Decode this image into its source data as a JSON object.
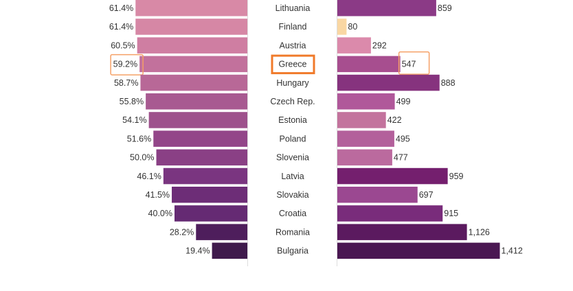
{
  "chart_data": {
    "type": "bar",
    "categories": [
      "Lithuania",
      "Finland",
      "Austria",
      "Greece",
      "Hungary",
      "Czech Rep.",
      "Estonia",
      "Poland",
      "Slovenia",
      "Latvia",
      "Slovakia",
      "Croatia",
      "Romania",
      "Bulgaria"
    ],
    "series": [
      {
        "values": [
          61.4,
          61.4,
          60.5,
          59.2,
          58.7,
          55.8,
          54.1,
          51.6,
          50.0,
          46.1,
          41.5,
          40.0,
          28.2,
          19.4
        ],
        "labels": [
          "61.4%",
          "61.4%",
          "60.5%",
          "59.2%",
          "58.7%",
          "55.8%",
          "54.1%",
          "51.6%",
          "50.0%",
          "46.1%",
          "41.5%",
          "40.0%",
          "28.2%",
          "19.4%"
        ],
        "colors": [
          "#d889a6",
          "#d687a5",
          "#cf7ea2",
          "#c2719c",
          "#b86897",
          "#a85a91",
          "#9e518c",
          "#934689",
          "#8a4085",
          "#7a3580",
          "#6d2d77",
          "#652a73",
          "#4e1e5c",
          "#3f1a4c"
        ]
      },
      {
        "values": [
          859,
          80,
          292,
          547,
          888,
          499,
          422,
          495,
          477,
          959,
          697,
          915,
          1126,
          1412
        ],
        "labels": [
          "859",
          "80",
          "292",
          "547",
          "888",
          "499",
          "422",
          "495",
          "477",
          "959",
          "697",
          "915",
          "1,126",
          "1,412"
        ],
        "colors": [
          "#8b3a86",
          "#f9d7a3",
          "#db8aab",
          "#a74e8f",
          "#86337e",
          "#b0589a",
          "#c3739d",
          "#b3609b",
          "#bb6a9e",
          "#741f6e",
          "#9b4891",
          "#792c7b",
          "#5b1a5f",
          "#4a1752"
        ]
      }
    ],
    "highlight": "Greece",
    "highlight_color": "#f07a2a",
    "label_color": "#333333",
    "axis_color": "#dddddd"
  }
}
